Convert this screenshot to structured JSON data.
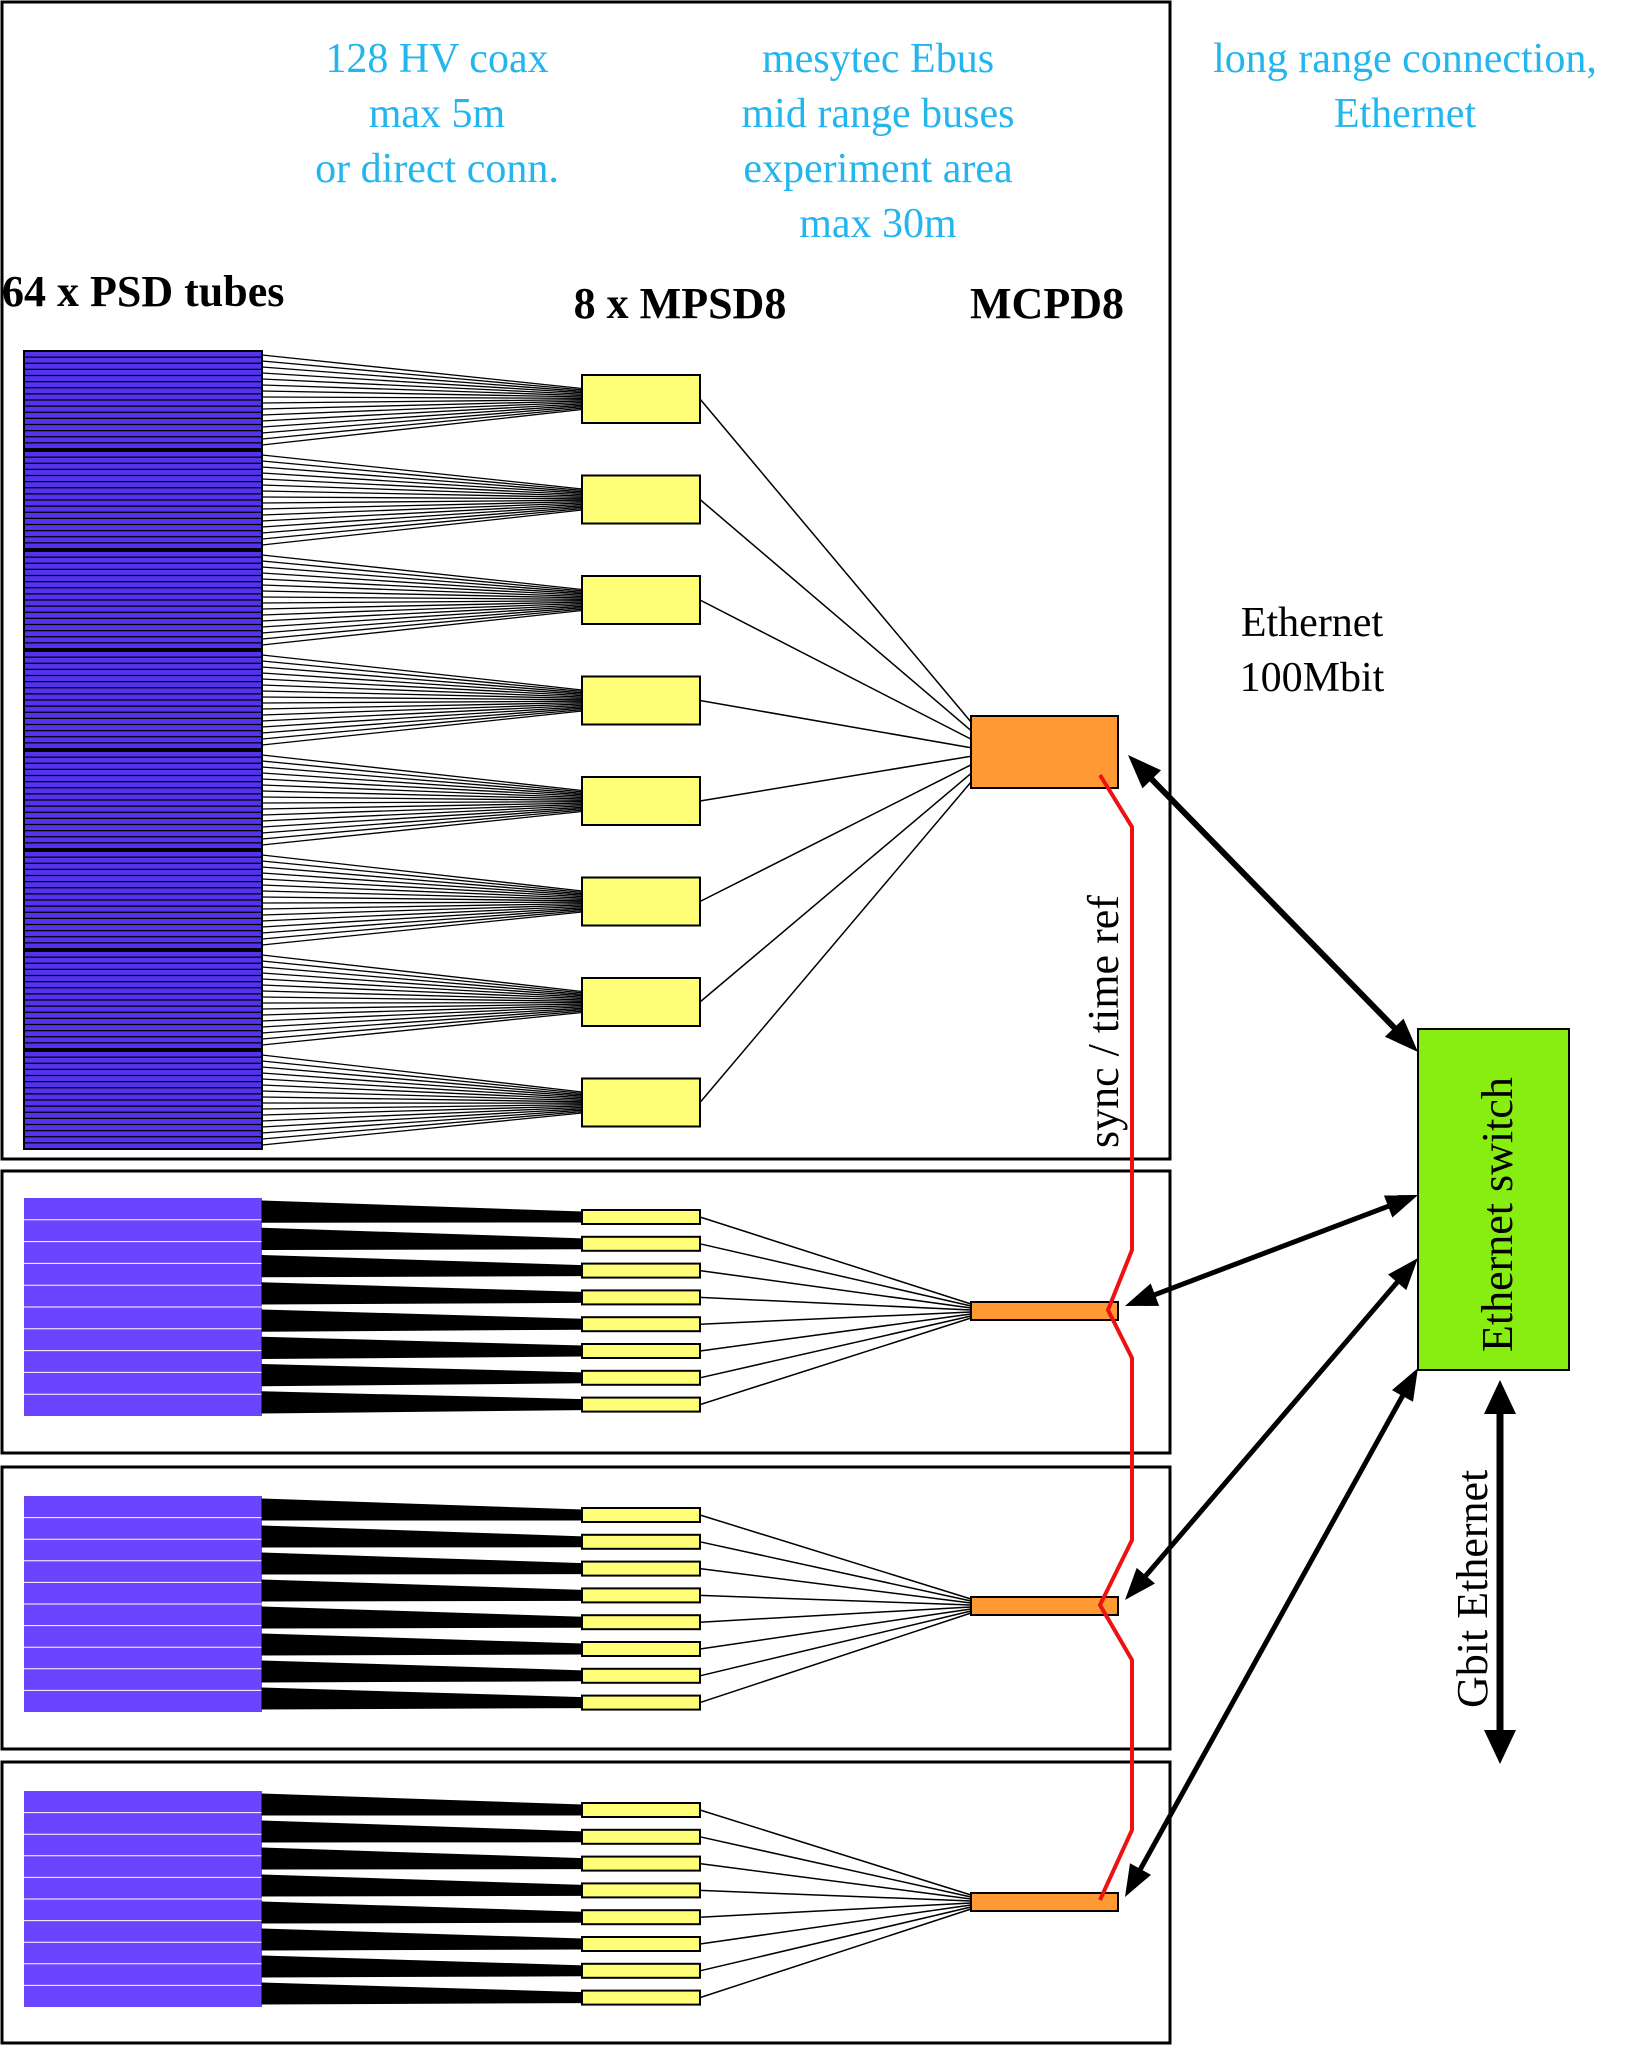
{
  "header": {
    "hv_coax": [
      "128 HV coax",
      "max 5m",
      "or direct conn."
    ],
    "ebus": [
      "mesytec Ebus",
      "mid range buses",
      "experiment area",
      "max 30m"
    ],
    "long_range": [
      "long range connection,",
      "Ethernet"
    ]
  },
  "labels": {
    "psd_tubes": "64 x PSD tubes",
    "mpsd8": "8 x MPSD8",
    "mcpd8": "MCPD8",
    "ethernet_100": [
      "Ethernet",
      "100Mbit"
    ],
    "sync": "sync / time ref",
    "switch": "Ethernet switch",
    "gbit": "Gbit Ethernet"
  },
  "colors": {
    "tube": "#5533ee",
    "tube_light": "#6a44ff",
    "mpsd": "#ffff77",
    "mcpd": "#ff9933",
    "switch": "#88ee11",
    "sync_line": "#ee1111",
    "header_text": "#22b5ee"
  },
  "structure": {
    "group_count": 4,
    "tube_blocks_per_group": 8,
    "tubes_per_block": 8
  }
}
